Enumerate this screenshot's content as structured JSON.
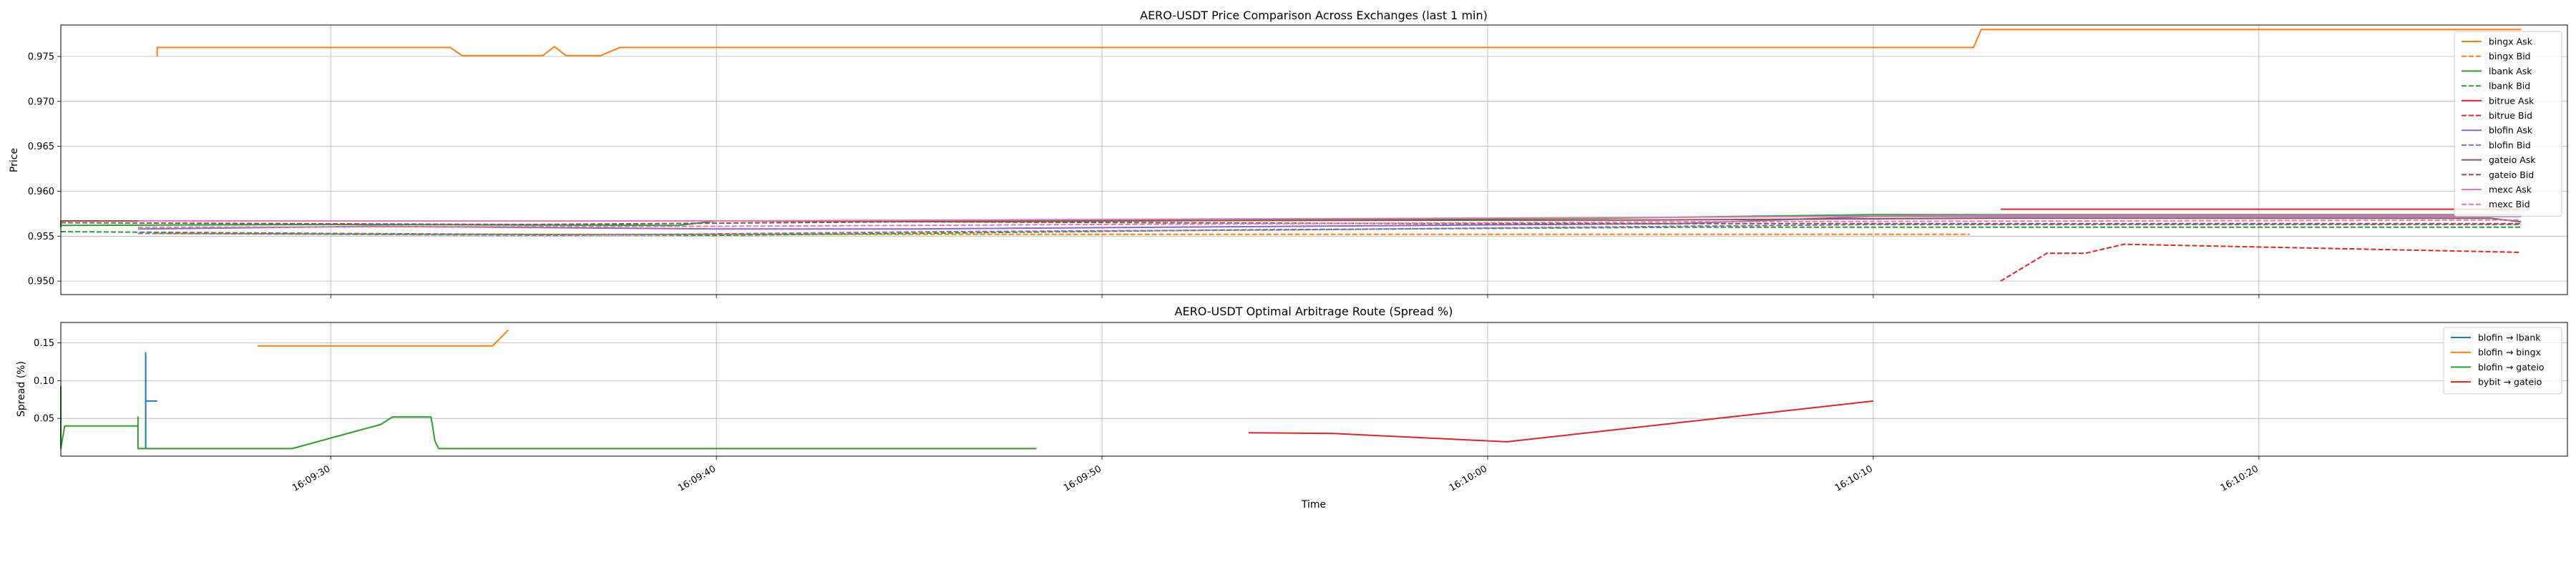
{
  "chart_data": [
    {
      "type": "line",
      "title": "AERO-USDT Price Comparison Across Exchanges (last 1 min)",
      "xlabel": "",
      "ylabel": "Price",
      "x_format": "time",
      "xlim": [
        "16:09:23",
        "16:10:28"
      ],
      "ylim": [
        0.9485,
        0.9785
      ],
      "yticks": [
        "0.950",
        "0.955",
        "0.960",
        "0.965",
        "0.970",
        "0.975"
      ],
      "grid": true,
      "legend_position": "top-right",
      "series": [
        {
          "name": "bingx Ask",
          "color": "#ff7f0e",
          "dash": "solid",
          "points": [
            [
              "16:09:25.5",
              0.975
            ],
            [
              "16:09:25.5",
              0.976
            ],
            [
              "16:09:33.1",
              0.976
            ],
            [
              "16:09:33.4",
              0.9751
            ],
            [
              "16:09:35.5",
              0.9751
            ],
            [
              "16:09:35.8",
              0.9761
            ],
            [
              "16:09:36.1",
              0.9751
            ],
            [
              "16:09:37.0",
              0.9751
            ],
            [
              "16:09:37.5",
              0.976
            ],
            [
              "16:10:12.6",
              0.976
            ],
            [
              "16:10:12.8",
              0.978
            ],
            [
              "16:10:26.8",
              0.978
            ]
          ]
        },
        {
          "name": "bingx Bid",
          "color": "#ff7f0e",
          "dash": "dashed",
          "points": [
            [
              "16:09:25.5",
              0.9553
            ],
            [
              "16:09:33.0",
              0.9552
            ],
            [
              "16:10:12.5",
              0.9552
            ]
          ]
        },
        {
          "name": "lbank Ask",
          "color": "#2ca02c",
          "dash": "solid",
          "points": [
            [
              "16:09:23.0",
              0.9562
            ],
            [
              "16:09:30.0",
              0.9563
            ],
            [
              "16:09:39.0",
              0.9562
            ],
            [
              "16:09:40.0",
              0.9567
            ],
            [
              "16:09:47.0",
              0.9566
            ],
            [
              "16:10:03.0",
              0.957
            ],
            [
              "16:10:10.0",
              0.9574
            ],
            [
              "16:10:26.8",
              0.9574
            ]
          ]
        },
        {
          "name": "lbank Bid",
          "color": "#2ca02c",
          "dash": "dashed",
          "points": [
            [
              "16:09:23.0",
              0.9555
            ],
            [
              "16:09:30.0",
              0.9553
            ],
            [
              "16:09:40.0",
              0.9551
            ],
            [
              "16:09:47.0",
              0.9554
            ],
            [
              "16:09:53.5",
              0.9557
            ],
            [
              "16:10:05.0",
              0.956
            ],
            [
              "16:10:26.8",
              0.956
            ]
          ]
        },
        {
          "name": "bitrue Ask",
          "color": "#d62728",
          "dash": "solid",
          "points": [
            [
              "16:10:13.3",
              0.958
            ],
            [
              "16:10:26.8",
              0.958
            ]
          ]
        },
        {
          "name": "bitrue Bid",
          "color": "#d62728",
          "dash": "dashed",
          "points": [
            [
              "16:10:13.3",
              0.95
            ],
            [
              "16:10:14.5",
              0.9531
            ],
            [
              "16:10:15.5",
              0.9531
            ],
            [
              "16:10:16.5",
              0.9541
            ],
            [
              "16:10:26.8",
              0.9532
            ]
          ]
        },
        {
          "name": "blofin Ask",
          "color": "#9467bd",
          "dash": "solid",
          "points": [
            [
              "16:09:25.0",
              0.9558
            ],
            [
              "16:09:31.0",
              0.9561
            ],
            [
              "16:09:40.0",
              0.9558
            ],
            [
              "16:09:45.0",
              0.9558
            ],
            [
              "16:09:55.0",
              0.9561
            ],
            [
              "16:10:05.0",
              0.9564
            ],
            [
              "16:10:10.0",
              0.9572
            ],
            [
              "16:10:26.8",
              0.9572
            ]
          ]
        },
        {
          "name": "blofin Bid",
          "color": "#9467bd",
          "dash": "dashed",
          "points": [
            [
              "16:09:25.0",
              0.9553
            ],
            [
              "16:09:36.0",
              0.9551
            ],
            [
              "16:09:46.0",
              0.9555
            ],
            [
              "16:09:55.0",
              0.9557
            ],
            [
              "16:10:10.0",
              0.9563
            ],
            [
              "16:10:26.8",
              0.9563
            ]
          ]
        },
        {
          "name": "gateio Ask",
          "color": "#8c564b",
          "dash": "solid",
          "points": [
            [
              "16:09:23.0",
              0.956
            ],
            [
              "16:09:23.0",
              0.9567
            ],
            [
              "16:09:45.0",
              0.9567
            ],
            [
              "16:10:04.0",
              0.9568
            ],
            [
              "16:10:13.0",
              0.957
            ],
            [
              "16:10:26.0",
              0.957
            ],
            [
              "16:10:26.8",
              0.9566
            ]
          ]
        },
        {
          "name": "gateio Bid",
          "color": "#8c564b",
          "dash": "dashed",
          "points": [
            [
              "16:09:23.0",
              0.9565
            ],
            [
              "16:09:35.0",
              0.9563
            ],
            [
              "16:09:45.0",
              0.9566
            ],
            [
              "16:09:58.0",
              0.9564
            ],
            [
              "16:10:26.8",
              0.9564
            ]
          ]
        },
        {
          "name": "mexc Ask",
          "color": "#e377c2",
          "dash": "solid",
          "points": [
            [
              "16:09:25.0",
              0.9567
            ],
            [
              "16:09:40.0",
              0.9567
            ],
            [
              "16:10:05.0",
              0.9571
            ],
            [
              "16:10:13.0",
              0.9573
            ],
            [
              "16:10:26.8",
              0.9573
            ]
          ]
        },
        {
          "name": "mexc Bid",
          "color": "#e377c2",
          "dash": "dashed",
          "points": [
            [
              "16:09:25.0",
              0.956
            ],
            [
              "16:09:40.0",
              0.9561
            ],
            [
              "16:10:05.0",
              0.9566
            ],
            [
              "16:10:26.8",
              0.9568
            ]
          ]
        }
      ]
    },
    {
      "type": "line",
      "title": "AERO-USDT Optimal Arbitrage Route (Spread %)",
      "xlabel": "Time",
      "ylabel": "Spread (%)",
      "x_format": "time",
      "xlim": [
        "16:09:23",
        "16:10:28"
      ],
      "ylim": [
        0.0,
        0.177
      ],
      "yticks": [
        "0.05",
        "0.10",
        "0.15"
      ],
      "xticks": [
        "16:09:30",
        "16:09:40",
        "16:09:50",
        "16:10:00",
        "16:10:10",
        "16:10:20"
      ],
      "grid": true,
      "legend_position": "top-right",
      "series": [
        {
          "name": "blofin → lbank",
          "color": "#1f77b4",
          "points": [
            [
              "16:09:25.2",
              0.01
            ],
            [
              "16:09:25.2",
              0.137
            ],
            [
              "16:09:25.2",
              0.073
            ],
            [
              "16:09:25.5",
              0.073
            ]
          ]
        },
        {
          "name": "blofin → bingx",
          "color": "#ff7f0e",
          "points": [
            [
              "16:09:28.1",
              0.146
            ],
            [
              "16:09:34.2",
              0.146
            ],
            [
              "16:09:34.6",
              0.167
            ]
          ]
        },
        {
          "name": "blofin → gateio",
          "color": "#2ca02c",
          "points": [
            [
              "16:09:23.0",
              0.093
            ],
            [
              "16:09:23.0",
              0.01
            ],
            [
              "16:09:23.1",
              0.04
            ],
            [
              "16:09:25.0",
              0.04
            ],
            [
              "16:09:25.0",
              0.052
            ],
            [
              "16:09:25.0",
              0.01
            ],
            [
              "16:09:29.0",
              0.01
            ],
            [
              "16:09:31.3",
              0.042
            ],
            [
              "16:09:31.6",
              0.052
            ],
            [
              "16:09:32.6",
              0.052
            ],
            [
              "16:09:32.7",
              0.02
            ],
            [
              "16:09:32.8",
              0.01
            ],
            [
              "16:09:48.3",
              0.01
            ]
          ]
        },
        {
          "name": "bybit → gateio",
          "color": "#d62728",
          "points": [
            [
              "16:09:53.8",
              0.031
            ],
            [
              "16:09:56.0",
              0.03
            ],
            [
              "16:10:00.5",
              0.019
            ],
            [
              "16:10:10.0",
              0.073
            ]
          ]
        }
      ]
    }
  ]
}
